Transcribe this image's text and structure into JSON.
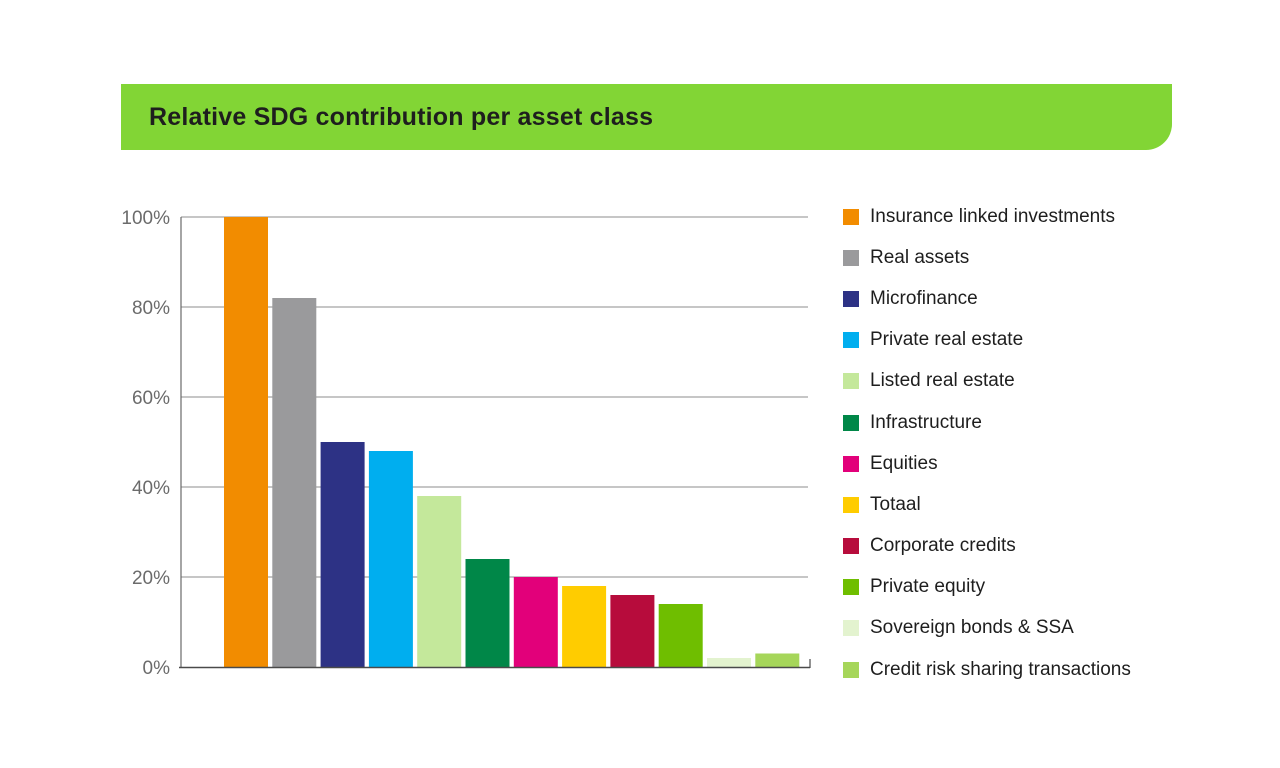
{
  "chart_data": {
    "type": "bar",
    "title": "Relative SDG contribution per asset class",
    "xlabel": "",
    "ylabel": "",
    "ylim": [
      0,
      100
    ],
    "yticks": [
      0,
      20,
      40,
      60,
      80,
      100
    ],
    "ytick_labels": [
      "0%",
      "20%",
      "40%",
      "60%",
      "80%",
      "100%"
    ],
    "legend_position": "right",
    "categories": [
      "Insurance linked investments",
      "Real assets",
      "Microfinance",
      "Private real estate",
      "Listed real estate",
      "Infrastructure",
      "Equities",
      "Totaal",
      "Corporate credits",
      "Private equity",
      "Sovereign bonds & SSA",
      "Credit risk sharing transactions"
    ],
    "values": [
      100,
      82,
      50,
      48,
      38,
      24,
      20,
      18,
      16,
      14,
      2,
      3
    ],
    "colors": [
      "#f28c00",
      "#9a9a9c",
      "#2d3285",
      "#00aeef",
      "#c4e89b",
      "#008748",
      "#e2007a",
      "#ffcc00",
      "#b70c3c",
      "#6fbe00",
      "#e3f3cf",
      "#a6d65a"
    ]
  },
  "theme": {
    "title_bar_color": "#82d535"
  }
}
